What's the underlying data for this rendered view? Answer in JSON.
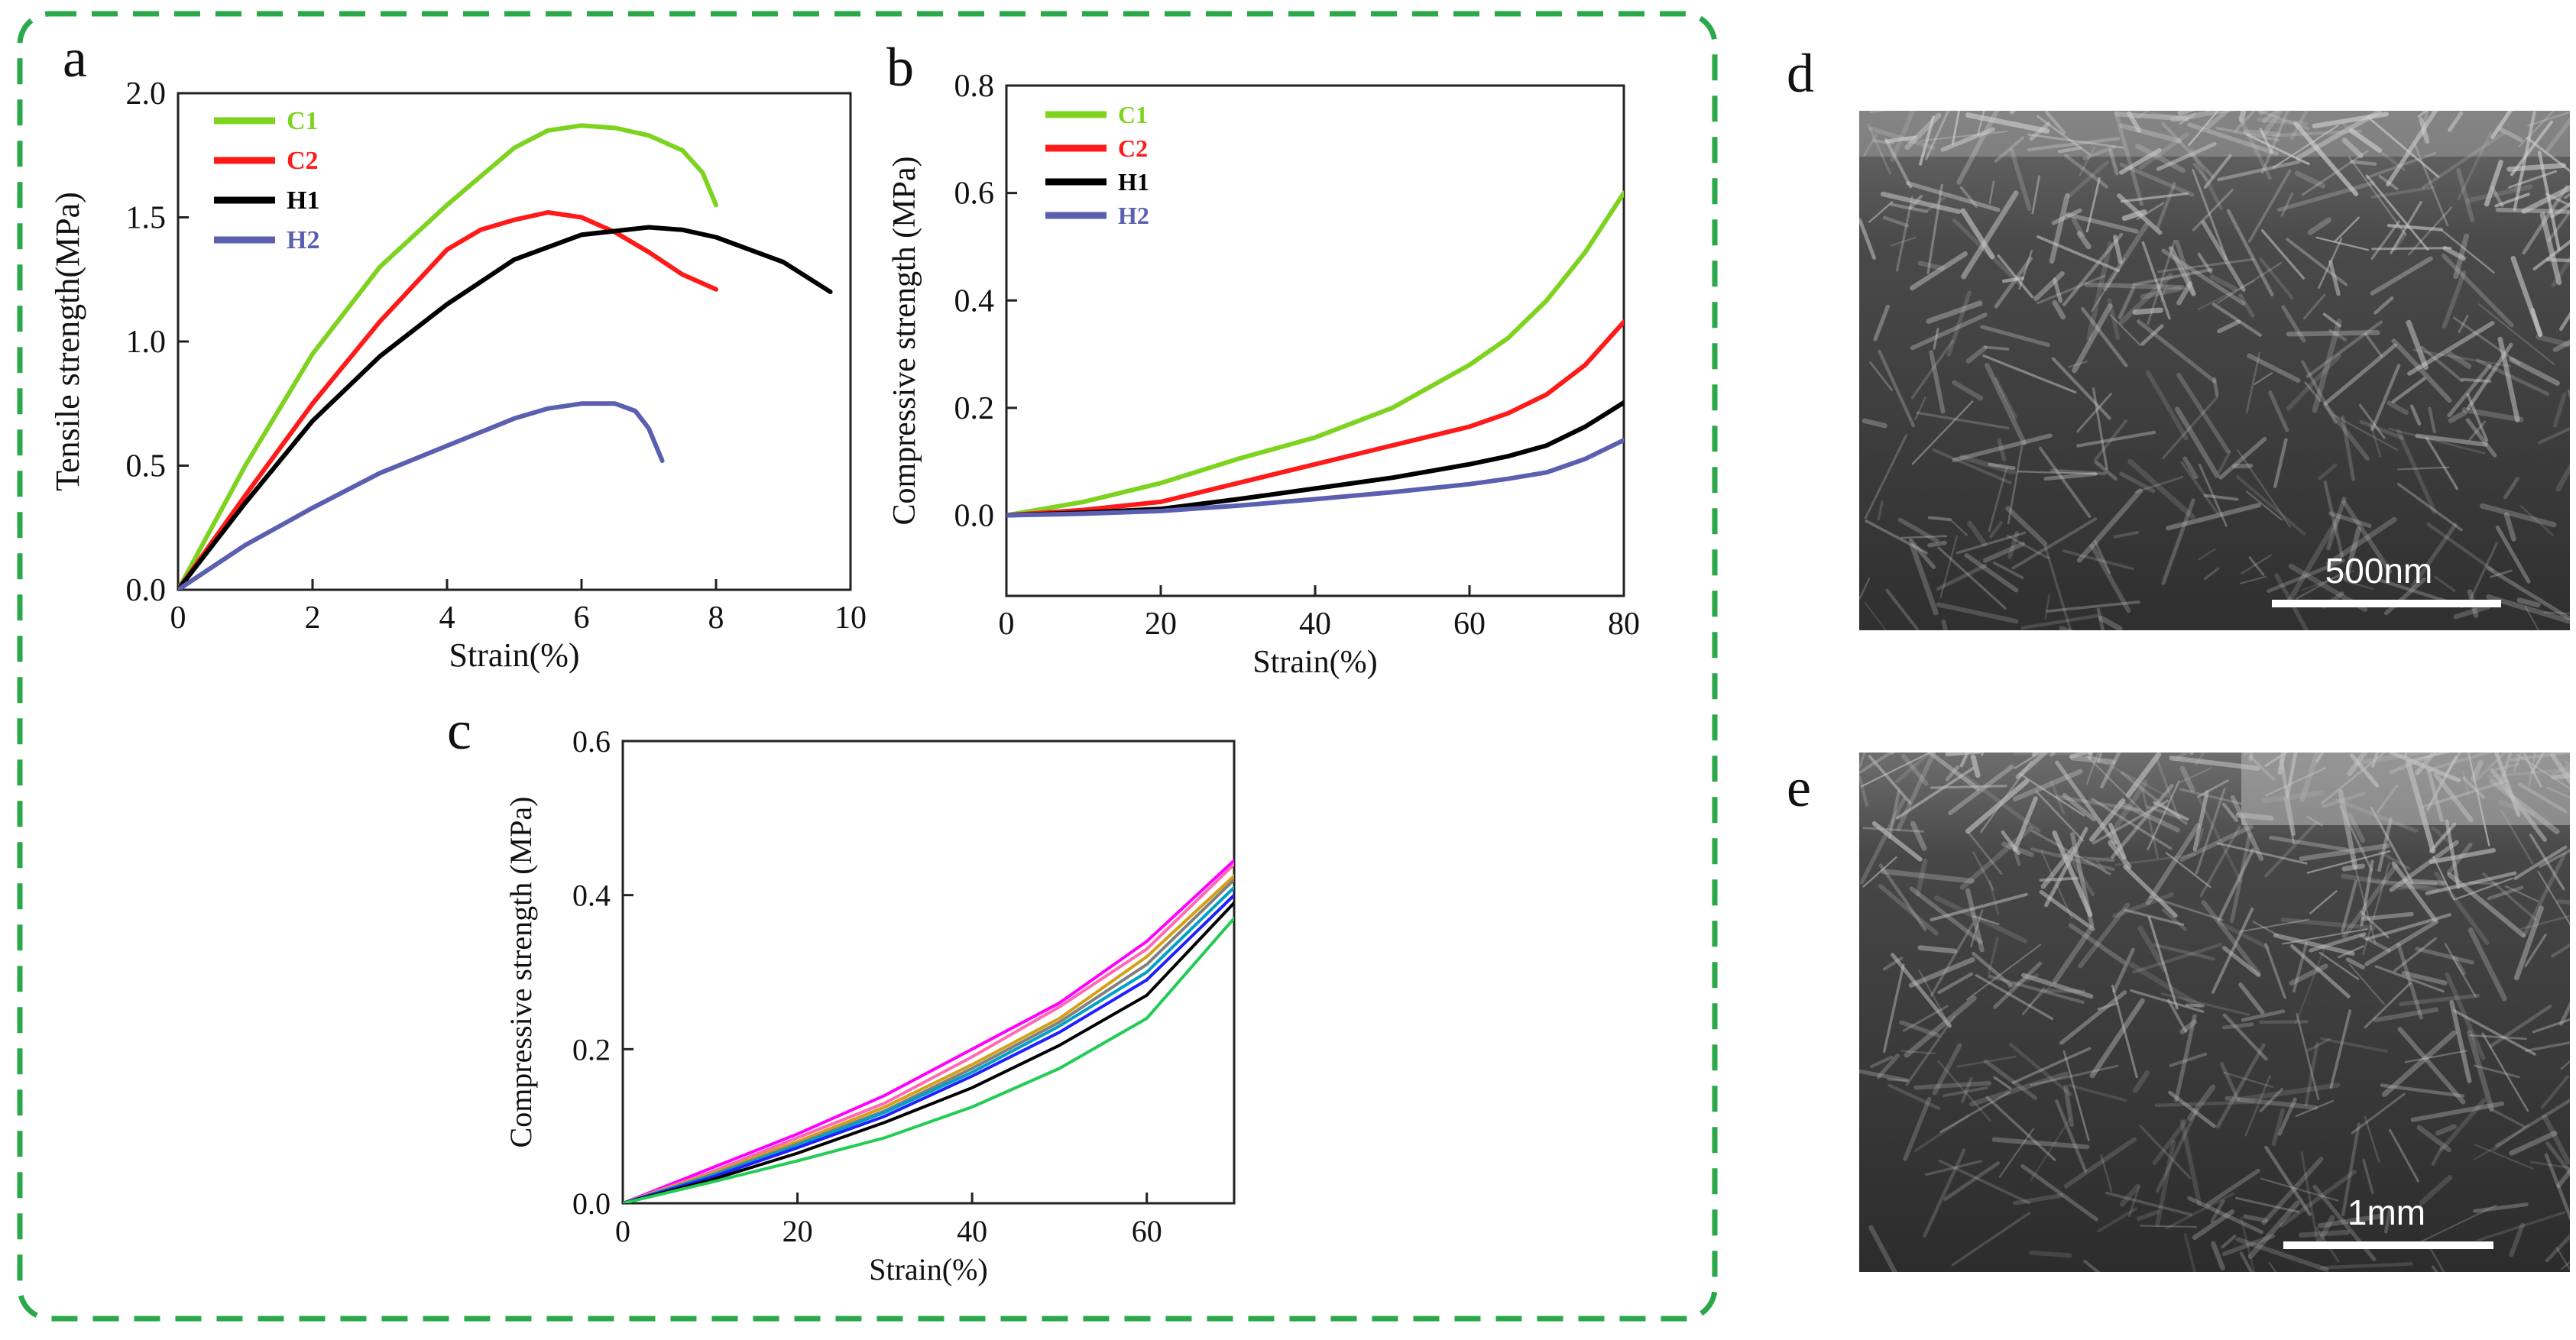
{
  "colors": {
    "C1": "#7ed321",
    "C2": "#ff1a1a",
    "H1": "#000000",
    "H2": "#5a5fb0",
    "frame": "#2aa84a"
  },
  "panels": {
    "d": {
      "letter": "d",
      "scale_label": "500nm",
      "image": "sem-micrograph"
    },
    "e": {
      "letter": "e",
      "scale_label": "1mm",
      "image": "sem-micrograph"
    }
  },
  "chart_data": [
    {
      "id": "a",
      "letter": "a",
      "type": "line",
      "xlabel": "Strain(%)",
      "ylabel": "Tensile strength(MPa)",
      "xlim": [
        0,
        10
      ],
      "ylim": [
        0,
        2.0
      ],
      "xticks": [
        0,
        2,
        4,
        6,
        8,
        10
      ],
      "yticks": [
        0.0,
        0.5,
        1.0,
        1.5,
        2.0
      ],
      "legend_position": "top-left",
      "series": [
        {
          "name": "C1",
          "color_key": "C1",
          "x": [
            0,
            1,
            2,
            3,
            4,
            5,
            5.5,
            6,
            6.5,
            7,
            7.5,
            7.8,
            8.0
          ],
          "y": [
            0,
            0.5,
            0.95,
            1.3,
            1.55,
            1.78,
            1.85,
            1.87,
            1.86,
            1.83,
            1.77,
            1.68,
            1.55
          ]
        },
        {
          "name": "C2",
          "color_key": "C2",
          "x": [
            0,
            1,
            2,
            3,
            4,
            4.5,
            5,
            5.5,
            6,
            6.5,
            7,
            7.5,
            8.0
          ],
          "y": [
            0,
            0.38,
            0.75,
            1.08,
            1.37,
            1.45,
            1.49,
            1.52,
            1.5,
            1.44,
            1.36,
            1.27,
            1.21
          ]
        },
        {
          "name": "H1",
          "color_key": "H1",
          "x": [
            0,
            1,
            2,
            3,
            4,
            5,
            6,
            7,
            7.5,
            8,
            9,
            9.7
          ],
          "y": [
            0,
            0.35,
            0.68,
            0.94,
            1.15,
            1.33,
            1.43,
            1.46,
            1.45,
            1.42,
            1.32,
            1.2
          ]
        },
        {
          "name": "H2",
          "color_key": "H2",
          "x": [
            0,
            1,
            2,
            3,
            4,
            5,
            5.5,
            6,
            6.5,
            6.8,
            7.0,
            7.2
          ],
          "y": [
            0,
            0.18,
            0.33,
            0.47,
            0.58,
            0.69,
            0.73,
            0.75,
            0.75,
            0.72,
            0.65,
            0.52
          ]
        }
      ]
    },
    {
      "id": "b",
      "letter": "b",
      "type": "line",
      "xlabel": "Strain(%)",
      "ylabel": "Compressive strength (MPa)",
      "xlim": [
        0,
        80
      ],
      "ylim": [
        -0.15,
        0.8
      ],
      "xticks": [
        0,
        20,
        40,
        60,
        80
      ],
      "yticks": [
        0.0,
        0.2,
        0.4,
        0.6,
        0.8
      ],
      "legend_position": "top-left",
      "series": [
        {
          "name": "C1",
          "color_key": "C1",
          "x": [
            0,
            10,
            20,
            30,
            40,
            50,
            60,
            65,
            70,
            75,
            80
          ],
          "y": [
            0,
            0.025,
            0.06,
            0.105,
            0.145,
            0.2,
            0.28,
            0.33,
            0.4,
            0.49,
            0.6
          ]
        },
        {
          "name": "C2",
          "color_key": "C2",
          "x": [
            0,
            10,
            20,
            30,
            40,
            50,
            60,
            65,
            70,
            75,
            80
          ],
          "y": [
            0,
            0.01,
            0.025,
            0.06,
            0.095,
            0.13,
            0.165,
            0.19,
            0.225,
            0.28,
            0.36
          ]
        },
        {
          "name": "H1",
          "color_key": "H1",
          "x": [
            0,
            10,
            20,
            30,
            40,
            50,
            60,
            65,
            70,
            75,
            80
          ],
          "y": [
            0,
            0.005,
            0.012,
            0.03,
            0.05,
            0.07,
            0.095,
            0.11,
            0.13,
            0.165,
            0.21
          ]
        },
        {
          "name": "H2",
          "color_key": "H2",
          "x": [
            0,
            10,
            20,
            30,
            40,
            50,
            60,
            65,
            70,
            75,
            80
          ],
          "y": [
            0,
            0.003,
            0.008,
            0.018,
            0.03,
            0.043,
            0.058,
            0.068,
            0.08,
            0.105,
            0.14
          ]
        }
      ]
    },
    {
      "id": "c",
      "letter": "c",
      "type": "line",
      "xlabel": "Strain(%)",
      "ylabel": "Compressive strength (MPa)",
      "xlim": [
        0,
        70
      ],
      "ylim": [
        0,
        0.6
      ],
      "xticks": [
        0,
        20,
        40,
        60
      ],
      "yticks": [
        0.0,
        0.2,
        0.4,
        0.6
      ],
      "series": [
        {
          "color": "#ff00ff",
          "x": [
            0,
            10,
            20,
            30,
            40,
            50,
            60,
            70
          ],
          "y": [
            0,
            0.045,
            0.09,
            0.14,
            0.2,
            0.26,
            0.34,
            0.445
          ]
        },
        {
          "color": "#ff69b4",
          "x": [
            0,
            10,
            20,
            30,
            40,
            50,
            60,
            70
          ],
          "y": [
            0,
            0.04,
            0.085,
            0.13,
            0.19,
            0.255,
            0.33,
            0.44
          ]
        },
        {
          "color": "#d4a017",
          "x": [
            0,
            10,
            20,
            30,
            40,
            50,
            60,
            70
          ],
          "y": [
            0,
            0.038,
            0.08,
            0.125,
            0.18,
            0.24,
            0.32,
            0.425
          ]
        },
        {
          "color": "#808080",
          "x": [
            0,
            10,
            20,
            30,
            40,
            50,
            60,
            70
          ],
          "y": [
            0,
            0.036,
            0.077,
            0.12,
            0.175,
            0.235,
            0.31,
            0.42
          ]
        },
        {
          "color": "#00a0c8",
          "x": [
            0,
            10,
            20,
            30,
            40,
            50,
            60,
            70
          ],
          "y": [
            0,
            0.035,
            0.075,
            0.118,
            0.17,
            0.23,
            0.3,
            0.41
          ]
        },
        {
          "color": "#2020ff",
          "x": [
            0,
            10,
            20,
            30,
            40,
            50,
            60,
            70
          ],
          "y": [
            0,
            0.033,
            0.072,
            0.113,
            0.165,
            0.222,
            0.29,
            0.4
          ]
        },
        {
          "color": "#000000",
          "x": [
            0,
            10,
            20,
            30,
            40,
            50,
            60,
            70
          ],
          "y": [
            0,
            0.03,
            0.065,
            0.105,
            0.15,
            0.205,
            0.27,
            0.39
          ]
        },
        {
          "color": "#22cc55",
          "x": [
            0,
            10,
            20,
            30,
            40,
            50,
            60,
            70
          ],
          "y": [
            0,
            0.027,
            0.055,
            0.085,
            0.125,
            0.175,
            0.24,
            0.37
          ]
        }
      ]
    }
  ]
}
